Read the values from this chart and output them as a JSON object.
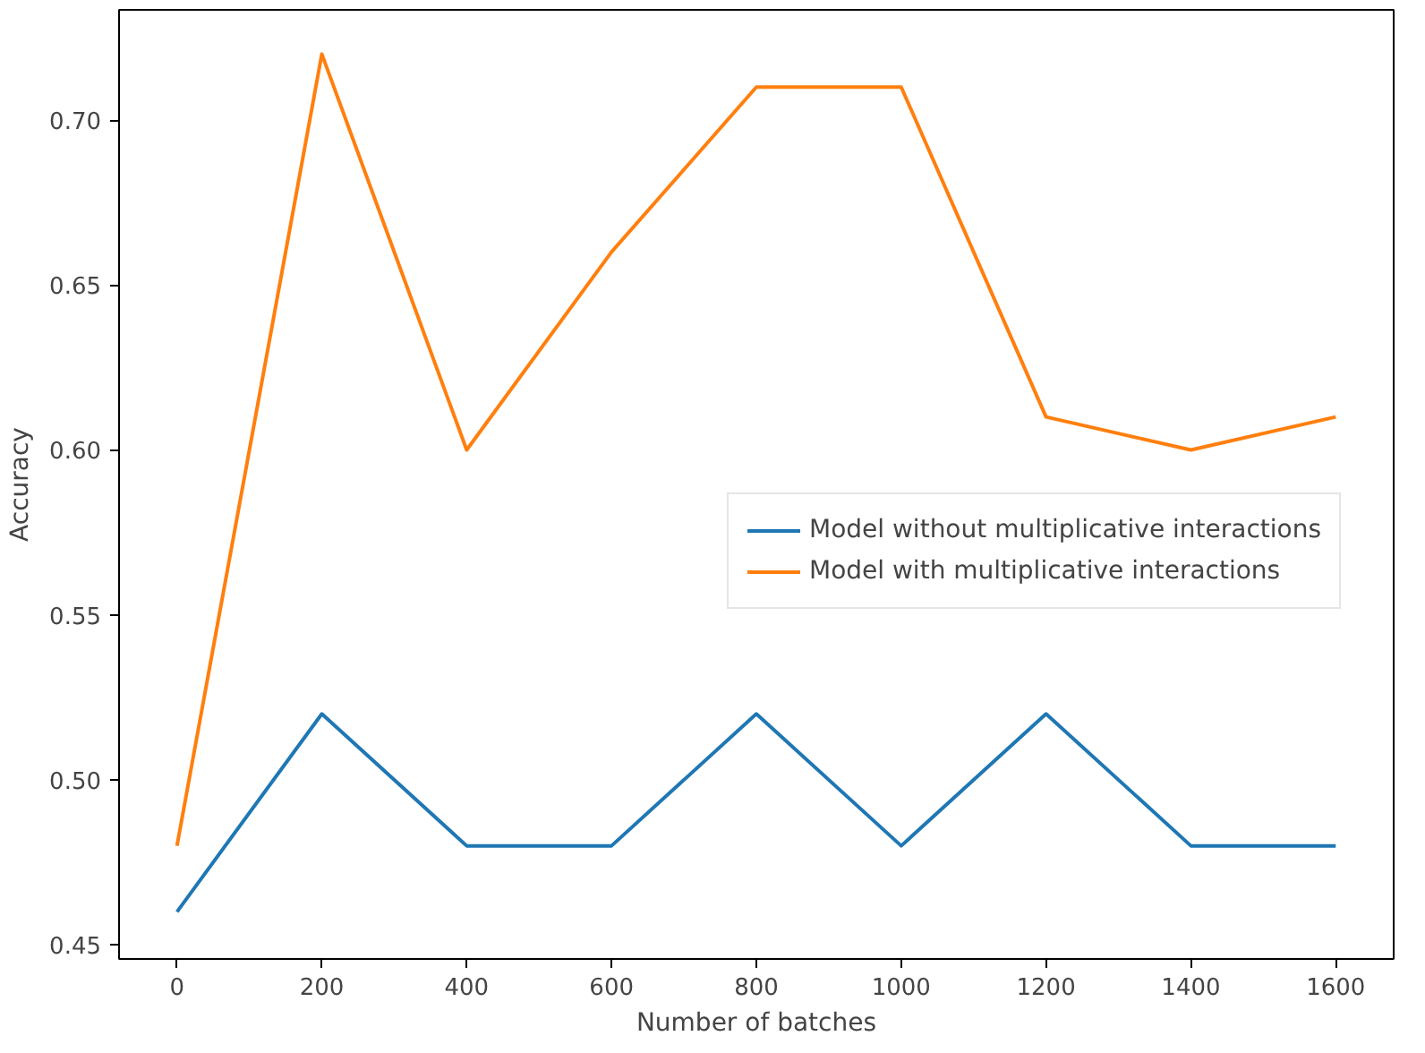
{
  "chart_data": {
    "type": "line",
    "xlabel": "Number of batches",
    "ylabel": "Accuracy",
    "x": [
      0,
      200,
      400,
      600,
      800,
      1000,
      1200,
      1400,
      1600
    ],
    "series": [
      {
        "name": "Model without multiplicative interactions",
        "color": "#1f77b4",
        "values": [
          0.46,
          0.52,
          0.48,
          0.48,
          0.52,
          0.48,
          0.52,
          0.48,
          0.48
        ]
      },
      {
        "name": "Model with multiplicative interactions",
        "color": "#ff7f0e",
        "values": [
          0.48,
          0.72,
          0.6,
          0.66,
          0.71,
          0.71,
          0.61,
          0.6,
          0.61
        ]
      }
    ],
    "xlim": [
      -80,
      1680
    ],
    "ylim": [
      0.4457,
      0.7334
    ],
    "xticks": [
      0,
      200,
      400,
      600,
      800,
      1000,
      1200,
      1400,
      1600
    ],
    "yticks": [
      {
        "value": 0.45,
        "label": "0.45"
      },
      {
        "value": 0.5,
        "label": "0.50"
      },
      {
        "value": 0.55,
        "label": "0.55"
      },
      {
        "value": 0.6,
        "label": "0.60"
      },
      {
        "value": 0.65,
        "label": "0.65"
      },
      {
        "value": 0.7,
        "label": "0.70"
      }
    ],
    "legend": "right",
    "grid": false,
    "marker": "none",
    "line_style": "solid"
  }
}
